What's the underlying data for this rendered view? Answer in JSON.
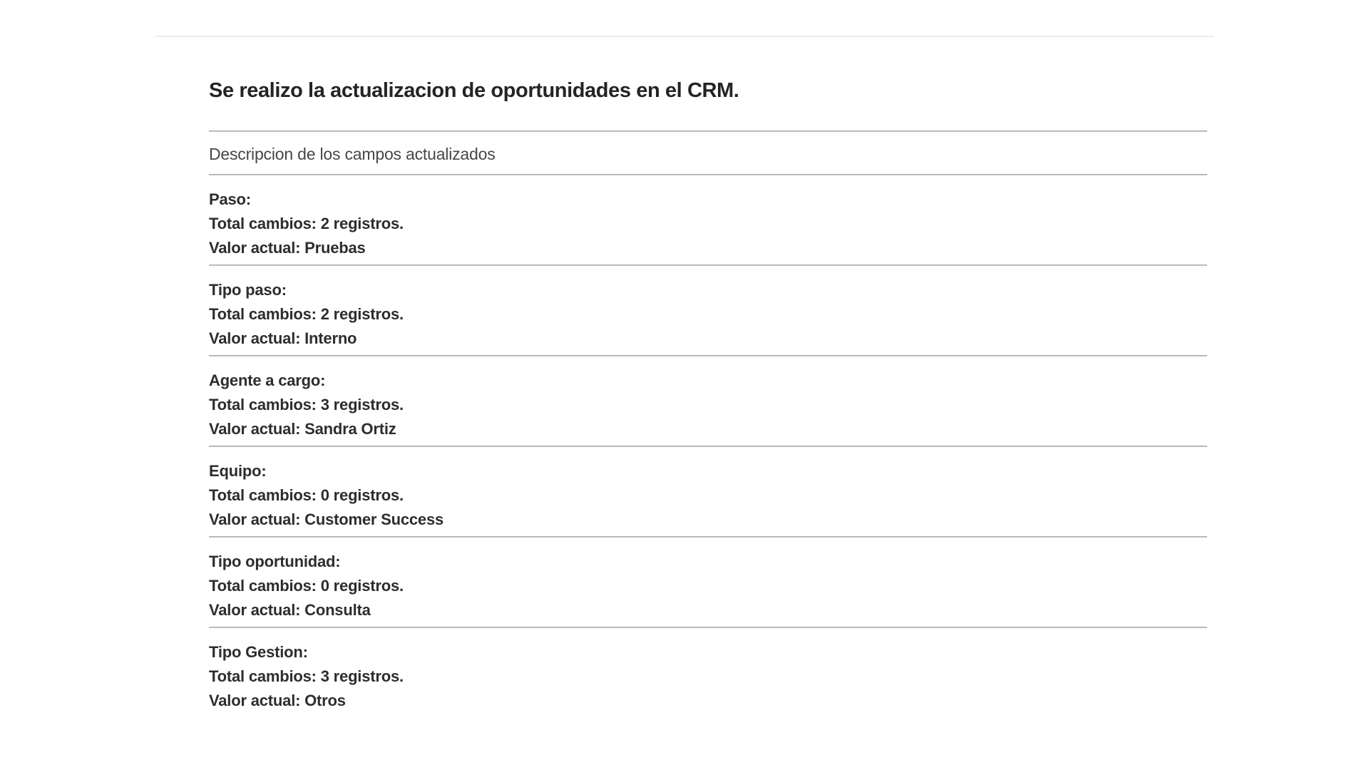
{
  "page": {
    "title": "Se realizo la actualizacion de oportunidades en el CRM.",
    "section_header": "Descripcion de los campos actualizados"
  },
  "fields": [
    {
      "name": "Paso:",
      "total_changes": "Total cambios: 2 registros.",
      "current_value": "Valor actual: Pruebas"
    },
    {
      "name": "Tipo paso:",
      "total_changes": "Total cambios: 2 registros.",
      "current_value": "Valor actual: Interno"
    },
    {
      "name": "Agente a cargo:",
      "total_changes": "Total cambios: 3 registros.",
      "current_value": "Valor actual: Sandra Ortiz"
    },
    {
      "name": "Equipo:",
      "total_changes": "Total cambios: 0 registros.",
      "current_value": "Valor actual: Customer Success"
    },
    {
      "name": "Tipo oportunidad:",
      "total_changes": "Total cambios: 0 registros.",
      "current_value": "Valor actual: Consulta"
    },
    {
      "name": "Tipo Gestion:",
      "total_changes": "Total cambios: 3 registros.",
      "current_value": "Valor actual: Otros"
    }
  ],
  "colors": {
    "section_divider": "#a8a8a8",
    "top_divider": "#ededed",
    "title_text": "#242424",
    "body_text": "#2d2d2d",
    "subtitle_text": "#474747"
  }
}
